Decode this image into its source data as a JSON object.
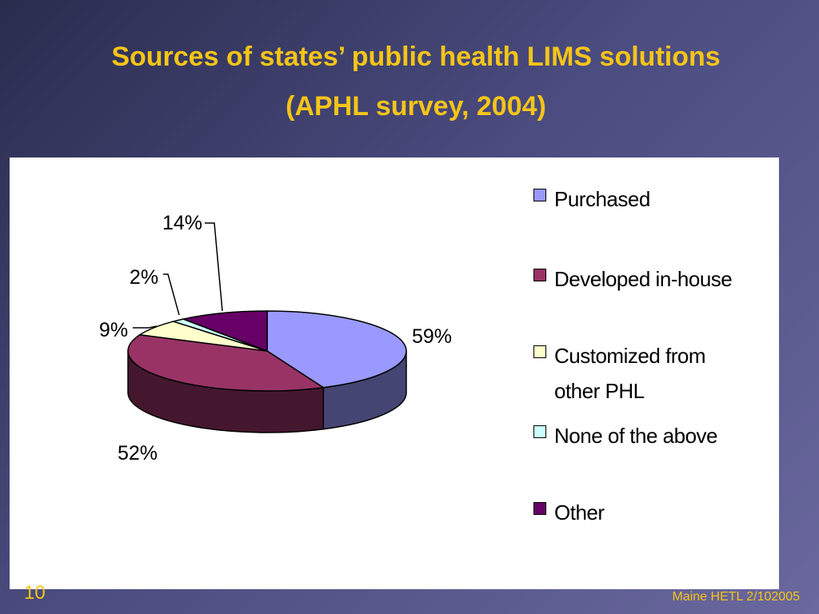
{
  "slide": {
    "title_line1": "Sources of states’ public health LIMS solutions",
    "title_line2": "(APHL survey, 2004)",
    "page_number": "10",
    "footer": "Maine HETL 2/102005"
  },
  "colors": {
    "title": "#f5c518",
    "purchased": "#9999ff",
    "developed": "#993366",
    "customized": "#ffffcc",
    "none": "#ccffff",
    "other": "#660066"
  },
  "chart_data": {
    "type": "pie",
    "title": "",
    "style": "3d",
    "legend_position": "right",
    "categories": [
      "Purchased",
      "Developed in-house",
      "Customized from other PHL",
      "None of the above",
      "Other"
    ],
    "values": [
      59,
      52,
      9,
      2,
      14
    ],
    "labels": [
      "59%",
      "52%",
      "9%",
      "2%",
      "14%"
    ]
  }
}
